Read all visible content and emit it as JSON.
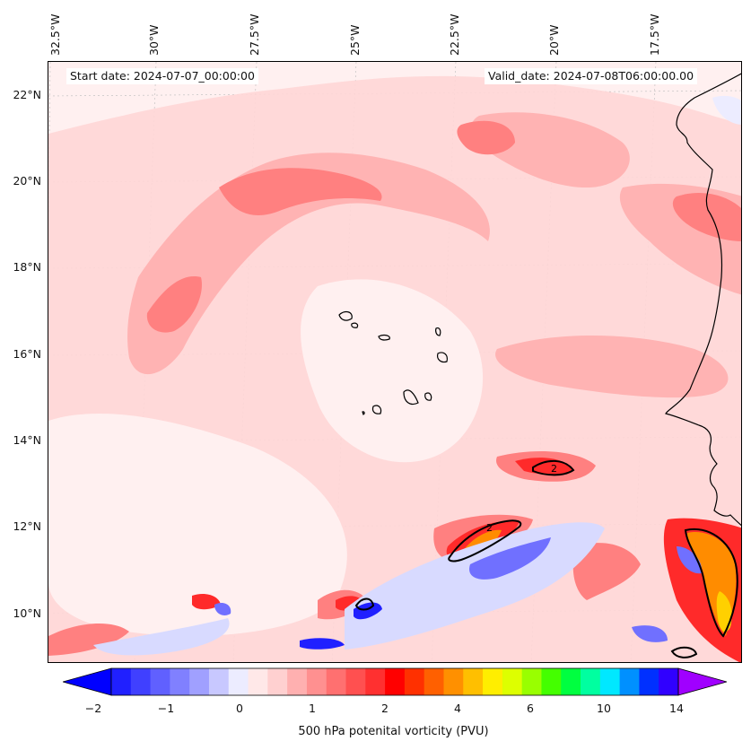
{
  "map": {
    "info": {
      "start": "Start date: 2024-07-07_00:00:00",
      "valid": "Valid_date: 2024-07-08T06:00:00.00"
    },
    "lon_labels": [
      "32.5°W",
      "30°W",
      "27.5°W",
      "25°W",
      "22.5°W",
      "20°W",
      "17.5°W"
    ],
    "lat_labels": [
      "22°N",
      "20°N",
      "18°N",
      "16°N",
      "14°N",
      "12°N",
      "10°N"
    ],
    "contour_label": "2",
    "colors": {
      "background": "#fff0f0",
      "light_pink": "#ffd6d6",
      "pink": "#ffb3b3",
      "salmon": "#ff8080",
      "red": "#ff2a2a",
      "orange": "#ff8c00",
      "yellow": "#ffd000",
      "light_blue": "#d8daff",
      "blue": "#7070ff",
      "dark_blue": "#2020ff",
      "coast": "#000000"
    }
  },
  "colorbar": {
    "label": "500 hPa potenital vorticity (PVU)",
    "ticks": [
      "−2",
      "−1",
      "0",
      "1",
      "2",
      "4",
      "6",
      "10",
      "14"
    ],
    "colors": [
      "#0000ff",
      "#2020ff",
      "#4040ff",
      "#6060ff",
      "#8080ff",
      "#a0a0ff",
      "#c8c8ff",
      "#ececff",
      "#ffe8e8",
      "#ffd0d0",
      "#ffb0b0",
      "#ff9090",
      "#ff7070",
      "#ff5050",
      "#ff3030",
      "#ff0000",
      "#ff3000",
      "#ff6000",
      "#ff9000",
      "#ffbf00",
      "#ffee00",
      "#ddff00",
      "#99ff00",
      "#44ff00",
      "#00ff40",
      "#00ffa0",
      "#00e8ff",
      "#0090ff",
      "#0030ff",
      "#3000ff",
      "#a000ff"
    ]
  }
}
